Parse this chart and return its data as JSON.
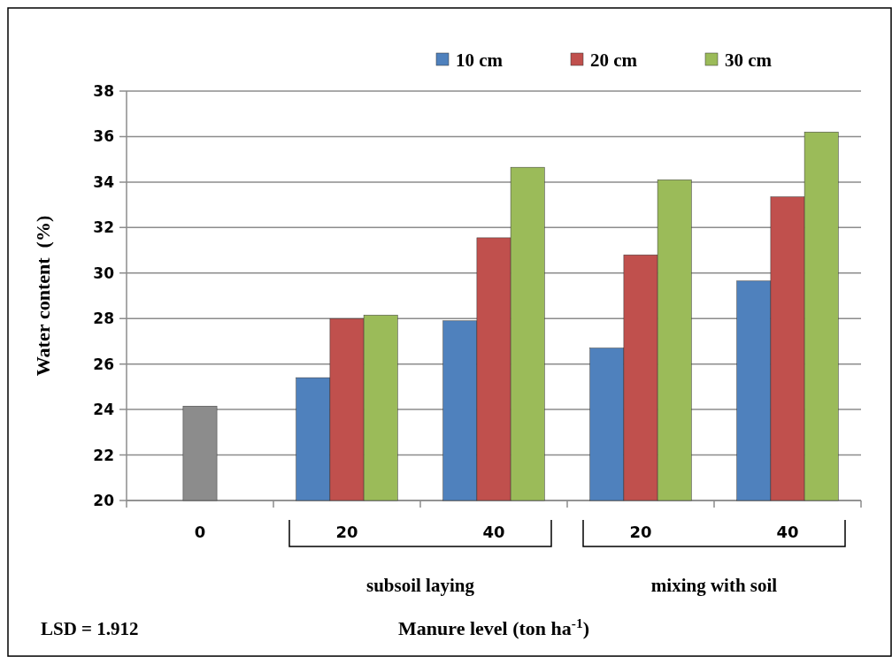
{
  "chart_data": {
    "type": "bar",
    "xlabel": "Manure level (ton ha$^{-1}$)",
    "ylabel": "Water content  (%)",
    "categories": [
      "0",
      "20",
      "40",
      "20",
      "40"
    ],
    "series": [
      {
        "color": "#8c8c8c",
        "values": [
          24.15,
          null,
          null,
          null,
          null
        ]
      },
      {
        "name": "10 cm",
        "color": "#4f81bd",
        "values": [
          null,
          25.4,
          27.9,
          26.7,
          29.65
        ]
      },
      {
        "name": "20 cm",
        "color": "#c0504d",
        "values": [
          null,
          28.0,
          31.55,
          30.8,
          33.35
        ]
      },
      {
        "name": "30 cm",
        "color": "#9bbb59",
        "values": [
          null,
          28.15,
          34.65,
          34.1,
          36.2
        ]
      }
    ],
    "ylim": [
      20,
      38
    ],
    "yticks": [
      20,
      22,
      24,
      26,
      28,
      30,
      32,
      34,
      36,
      38
    ],
    "grid": "y",
    "legend": "top right",
    "annotations": [
      "subsoil laying",
      "mixing with soil",
      "LSD = 1.912"
    ]
  }
}
